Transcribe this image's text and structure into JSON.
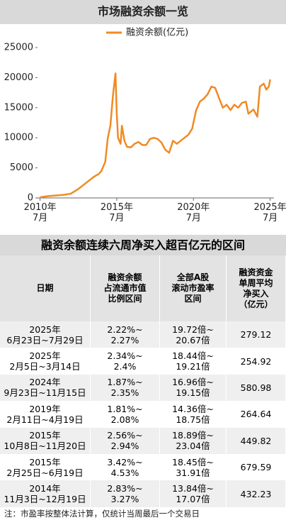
{
  "chart_data": {
    "type": "line",
    "title": "市场融资余额一览",
    "x": [
      "2010-07",
      "2011-01",
      "2011-07",
      "2012-01",
      "2012-07",
      "2013-01",
      "2013-07",
      "2014-01",
      "2014-05",
      "2014-07",
      "2014-10",
      "2014-12",
      "2015-02",
      "2015-04",
      "2015-06",
      "2015-07",
      "2015-08",
      "2015-10",
      "2015-11",
      "2016-01",
      "2016-03",
      "2016-06",
      "2016-09",
      "2016-12",
      "2017-03",
      "2017-06",
      "2017-09",
      "2017-12",
      "2018-03",
      "2018-06",
      "2018-09",
      "2018-12",
      "2019-03",
      "2019-06",
      "2019-09",
      "2019-12",
      "2020-03",
      "2020-06",
      "2020-09",
      "2020-12",
      "2021-03",
      "2021-06",
      "2021-09",
      "2021-12",
      "2022-03",
      "2022-06",
      "2022-09",
      "2022-12",
      "2023-03",
      "2023-06",
      "2023-09",
      "2023-12",
      "2024-02",
      "2024-06",
      "2024-09",
      "2024-11",
      "2025-02",
      "2025-04",
      "2025-06",
      "2025-07"
    ],
    "series": [
      {
        "name": "融资余额(亿元)",
        "color": "#f08a24",
        "values": [
          100,
          300,
          400,
          500,
          700,
          1500,
          2500,
          3500,
          4000,
          4500,
          6000,
          10000,
          12000,
          17000,
          20700,
          14000,
          10000,
          9000,
          12000,
          9500,
          8500,
          8400,
          9000,
          9300,
          8800,
          8800,
          9800,
          10000,
          9800,
          9200,
          8000,
          7500,
          9500,
          9000,
          9500,
          10000,
          10500,
          11500,
          14500,
          16000,
          16500,
          17200,
          18500,
          18300,
          16600,
          15000,
          15500,
          14600,
          15500,
          15000,
          15800,
          16000,
          14000,
          14700,
          13500,
          18500,
          19000,
          18000,
          18500,
          19700
        ]
      }
    ],
    "xlim": [
      "2010-05",
      "2025-10"
    ],
    "xticks": [
      {
        "value": "2010-07",
        "label": "2010年\n7月"
      },
      {
        "value": "2015-07",
        "label": "2015年\n7月"
      },
      {
        "value": "2020-07",
        "label": "2020年\n7月"
      },
      {
        "value": "2025-07",
        "label": "2025年\n7月"
      }
    ],
    "ylim": [
      0,
      25000
    ],
    "yticks": [
      0,
      5000,
      10000,
      15000,
      20000,
      25000
    ],
    "legend": "top"
  },
  "table": {
    "title": "融资余额连续六周净买入超百亿元的区间",
    "header": [
      "日期",
      "融资余额\n占流通市值\n比例区间",
      "全部A股\n滚动市盈率\n区间",
      "融资资金\n单周平均\n净买入\n（亿元）"
    ],
    "rows": [
      [
        "2025年\n6月23日~7月29日",
        "2.22%~\n2.27%",
        "19.72倍~\n20.67倍",
        279.12
      ],
      [
        "2025年\n2月5日~3月14日",
        "2.34%~\n2.4%",
        "18.44倍~\n19.21倍",
        254.92
      ],
      [
        "2024年\n9月23日~11月15日",
        "1.87%~\n2.35%",
        "16.96倍~\n19.15倍",
        580.98
      ],
      [
        "2019年\n2月11日~4月19日",
        "1.81%~\n2.08%",
        "14.36倍~\n18.75倍",
        264.64
      ],
      [
        "2015年\n10月8日~11月20日",
        "2.56%~\n2.94%",
        "18.89倍~\n23.04倍",
        449.82
      ],
      [
        "2015年\n2月25日~6月19日",
        "3.42%~\n4.53%",
        "18.45倍~\n31.91倍",
        679.59
      ],
      [
        "2014年\n11月3日~12月19日",
        "2.83%~\n3.27%",
        "13.84倍~\n17.07倍",
        432.23
      ]
    ]
  },
  "note": "注：市盈率按整体法计算，仅统计当周最后一个交易日"
}
